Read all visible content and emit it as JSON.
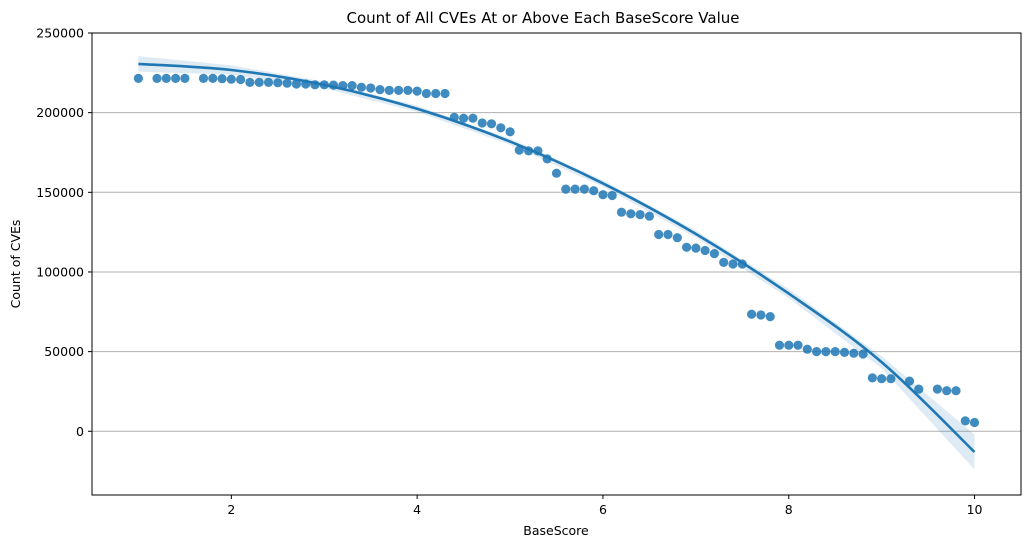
{
  "chart_data": {
    "type": "scatter",
    "title": "Count of All CVEs At or Above Each BaseScore Value",
    "xlabel": "BaseScore",
    "ylabel": "Count of CVEs",
    "xlim": [
      0.5,
      10.5
    ],
    "ylim": [
      -40000,
      250000
    ],
    "xticks": [
      2,
      4,
      6,
      8,
      10
    ],
    "yticks": [
      0,
      50000,
      100000,
      150000,
      200000,
      250000
    ],
    "grid": "horizontal",
    "colors": {
      "points": "#1f77b4",
      "line": "#1f77b4",
      "band": "#1f77b4"
    },
    "points": [
      [
        1.0,
        221500
      ],
      [
        1.2,
        221500
      ],
      [
        1.3,
        221500
      ],
      [
        1.4,
        221500
      ],
      [
        1.5,
        221500
      ],
      [
        1.7,
        221500
      ],
      [
        1.8,
        221500
      ],
      [
        1.9,
        221300
      ],
      [
        2.0,
        221000
      ],
      [
        2.1,
        220800
      ],
      [
        2.2,
        219000
      ],
      [
        2.3,
        219000
      ],
      [
        2.4,
        219000
      ],
      [
        2.5,
        218800
      ],
      [
        2.6,
        218500
      ],
      [
        2.7,
        218000
      ],
      [
        2.8,
        218000
      ],
      [
        2.9,
        217500
      ],
      [
        3.0,
        217500
      ],
      [
        3.1,
        217300
      ],
      [
        3.2,
        217000
      ],
      [
        3.3,
        217000
      ],
      [
        3.4,
        216000
      ],
      [
        3.5,
        215500
      ],
      [
        3.6,
        214500
      ],
      [
        3.7,
        214000
      ],
      [
        3.8,
        214000
      ],
      [
        3.9,
        214000
      ],
      [
        4.0,
        213500
      ],
      [
        4.1,
        212000
      ],
      [
        4.2,
        212000
      ],
      [
        4.3,
        212000
      ],
      [
        4.4,
        197000
      ],
      [
        4.5,
        196500
      ],
      [
        4.6,
        196500
      ],
      [
        4.7,
        193500
      ],
      [
        4.8,
        193000
      ],
      [
        4.9,
        190500
      ],
      [
        5.0,
        188000
      ],
      [
        5.1,
        176500
      ],
      [
        5.2,
        176000
      ],
      [
        5.3,
        176000
      ],
      [
        5.4,
        171000
      ],
      [
        5.5,
        162000
      ],
      [
        5.6,
        152000
      ],
      [
        5.7,
        152000
      ],
      [
        5.8,
        152000
      ],
      [
        5.9,
        151000
      ],
      [
        6.0,
        148500
      ],
      [
        6.1,
        148000
      ],
      [
        6.2,
        137500
      ],
      [
        6.3,
        136500
      ],
      [
        6.4,
        136000
      ],
      [
        6.5,
        135000
      ],
      [
        6.6,
        123500
      ],
      [
        6.7,
        123500
      ],
      [
        6.8,
        121500
      ],
      [
        6.9,
        115500
      ],
      [
        7.0,
        115000
      ],
      [
        7.1,
        113500
      ],
      [
        7.2,
        111500
      ],
      [
        7.3,
        106000
      ],
      [
        7.4,
        105000
      ],
      [
        7.5,
        105000
      ],
      [
        7.6,
        73500
      ],
      [
        7.7,
        73000
      ],
      [
        7.8,
        72000
      ],
      [
        7.9,
        54000
      ],
      [
        8.0,
        54000
      ],
      [
        8.1,
        54000
      ],
      [
        8.2,
        51500
      ],
      [
        8.3,
        50000
      ],
      [
        8.4,
        50000
      ],
      [
        8.5,
        50000
      ],
      [
        8.6,
        49500
      ],
      [
        8.7,
        49000
      ],
      [
        8.8,
        48500
      ],
      [
        8.9,
        33500
      ],
      [
        9.0,
        33000
      ],
      [
        9.1,
        33000
      ],
      [
        9.3,
        31500
      ],
      [
        9.4,
        26500
      ],
      [
        9.6,
        26500
      ],
      [
        9.7,
        25500
      ],
      [
        9.8,
        25500
      ],
      [
        9.9,
        6500
      ],
      [
        10.0,
        5500
      ]
    ],
    "fit": {
      "type": "quadratic",
      "x_range": [
        1.0,
        10.0
      ],
      "line": [
        [
          1.0,
          230600
        ],
        [
          2.0,
          226800
        ],
        [
          3.0,
          217400
        ],
        [
          4.0,
          202400
        ],
        [
          5.0,
          181800
        ],
        [
          6.0,
          155600
        ],
        [
          7.0,
          123800
        ],
        [
          8.0,
          86400
        ],
        [
          9.0,
          43400
        ],
        [
          10.0,
          -13000
        ]
      ],
      "band_upper": [
        [
          1.0,
          235500
        ],
        [
          2.0,
          229700
        ],
        [
          3.0,
          219500
        ],
        [
          4.0,
          204300
        ],
        [
          5.0,
          183700
        ],
        [
          6.0,
          157600
        ],
        [
          7.0,
          126000
        ],
        [
          8.0,
          89300
        ],
        [
          9.0,
          47200
        ],
        [
          10.0,
          -2000
        ]
      ],
      "band_lower": [
        [
          1.0,
          225700
        ],
        [
          2.0,
          223900
        ],
        [
          3.0,
          215300
        ],
        [
          4.0,
          200500
        ],
        [
          5.0,
          179900
        ],
        [
          6.0,
          153600
        ],
        [
          7.0,
          121600
        ],
        [
          8.0,
          83500
        ],
        [
          9.0,
          39600
        ],
        [
          10.0,
          -24000
        ]
      ]
    }
  }
}
